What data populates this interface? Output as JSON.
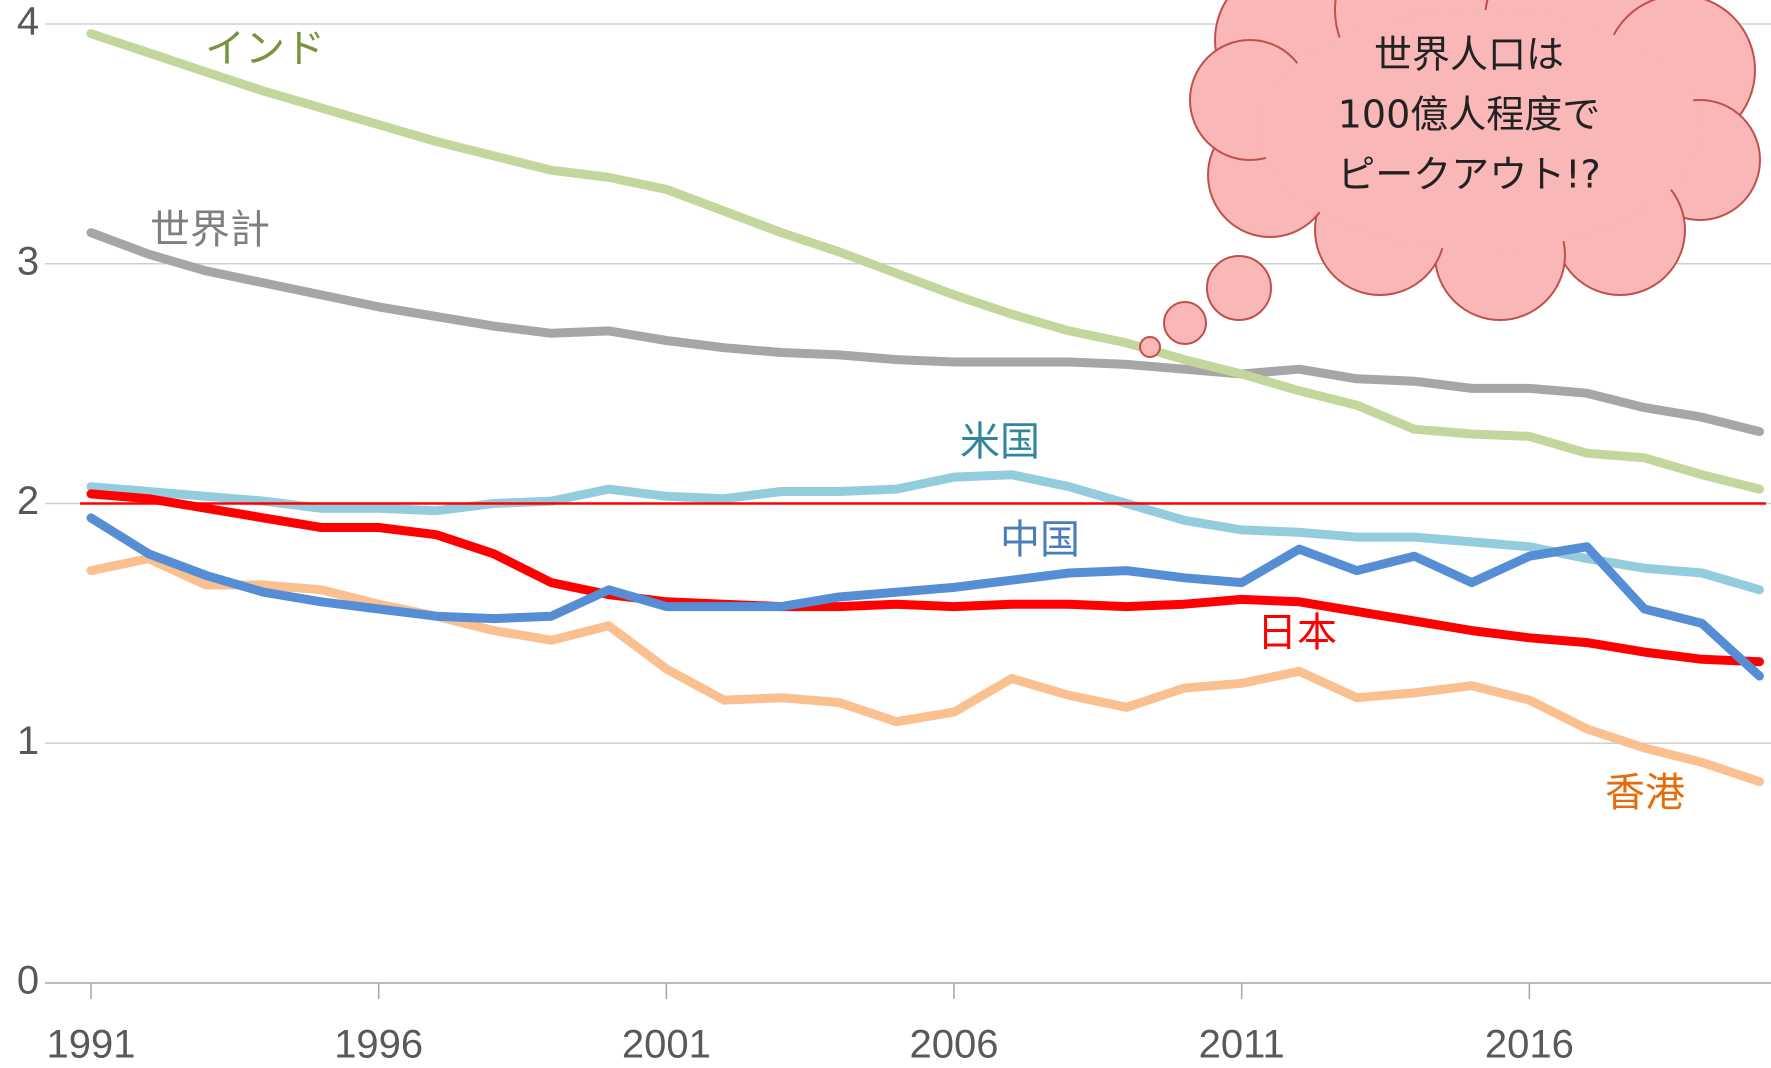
{
  "chart_data": {
    "type": "line",
    "x": [
      1991,
      1992,
      1993,
      1994,
      1995,
      1996,
      1997,
      1998,
      1999,
      2000,
      2001,
      2002,
      2003,
      2004,
      2005,
      2006,
      2007,
      2008,
      2009,
      2010,
      2011,
      2012,
      2013,
      2014,
      2015,
      2016,
      2017,
      2018,
      2019,
      2020
    ],
    "series": [
      {
        "name": "香港",
        "color": "#fac090",
        "label_color": "#e46c0a",
        "values": [
          1.72,
          1.77,
          1.66,
          1.66,
          1.64,
          1.58,
          1.53,
          1.47,
          1.43,
          1.49,
          1.31,
          1.18,
          1.19,
          1.17,
          1.09,
          1.13,
          1.27,
          1.2,
          1.15,
          1.23,
          1.25,
          1.3,
          1.19,
          1.21,
          1.24,
          1.18,
          1.06,
          0.98,
          0.92,
          0.84
        ]
      },
      {
        "name": "世界計",
        "color": "#a6a6a6",
        "label_color": "#7f7f7f",
        "values": [
          3.13,
          3.04,
          2.97,
          2.92,
          2.87,
          2.82,
          2.78,
          2.74,
          2.71,
          2.72,
          2.68,
          2.65,
          2.63,
          2.62,
          2.6,
          2.59,
          2.59,
          2.59,
          2.58,
          2.56,
          2.54,
          2.56,
          2.52,
          2.51,
          2.48,
          2.48,
          2.46,
          2.4,
          2.36,
          2.3
        ]
      },
      {
        "name": "インド",
        "color": "#c3d69b",
        "label_color": "#77933c",
        "values": [
          3.96,
          3.88,
          3.8,
          3.72,
          3.65,
          3.58,
          3.51,
          3.45,
          3.39,
          3.36,
          3.31,
          3.22,
          3.13,
          3.05,
          2.96,
          2.87,
          2.79,
          2.72,
          2.67,
          2.6,
          2.54,
          2.47,
          2.41,
          2.31,
          2.29,
          2.28,
          2.21,
          2.19,
          2.12,
          2.06
        ]
      },
      {
        "name": "米国",
        "color": "#93cddd",
        "label_color": "#31859c",
        "values": [
          2.07,
          2.05,
          2.03,
          2.01,
          1.98,
          1.98,
          1.97,
          2.0,
          2.01,
          2.06,
          2.03,
          2.02,
          2.05,
          2.05,
          2.06,
          2.11,
          2.12,
          2.07,
          2.0,
          1.93,
          1.89,
          1.88,
          1.86,
          1.86,
          1.84,
          1.82,
          1.77,
          1.73,
          1.71,
          1.64
        ]
      },
      {
        "name": "日本",
        "color": "#ff0000",
        "label_color": "#ff0000",
        "values": [
          2.04,
          2.02,
          1.98,
          1.94,
          1.9,
          1.9,
          1.87,
          1.79,
          1.67,
          1.62,
          1.59,
          1.58,
          1.57,
          1.57,
          1.58,
          1.57,
          1.58,
          1.58,
          1.57,
          1.58,
          1.6,
          1.59,
          1.55,
          1.51,
          1.47,
          1.44,
          1.42,
          1.38,
          1.35,
          1.34
        ]
      },
      {
        "name": "中国",
        "color": "#558ed5",
        "label_color": "#4a7ebb",
        "values": [
          1.94,
          1.79,
          1.7,
          1.63,
          1.59,
          1.56,
          1.53,
          1.52,
          1.53,
          1.64,
          1.57,
          1.57,
          1.57,
          1.61,
          1.63,
          1.65,
          1.68,
          1.71,
          1.72,
          1.69,
          1.67,
          1.81,
          1.72,
          1.78,
          1.67,
          1.78,
          1.82,
          1.56,
          1.5,
          1.28
        ]
      }
    ],
    "reference_line": {
      "value": 2,
      "color": "#ff0000"
    },
    "xlim": [
      1990.2,
      2020.2
    ],
    "xticks": [
      1991,
      1996,
      2001,
      2006,
      2011,
      2016
    ],
    "ylim": [
      0,
      4
    ],
    "yticks": [
      0,
      1,
      2,
      3,
      4
    ],
    "grid": true,
    "annotation": [
      "世界人口は",
      "100億人程度で",
      "ピークアウト!?"
    ]
  }
}
